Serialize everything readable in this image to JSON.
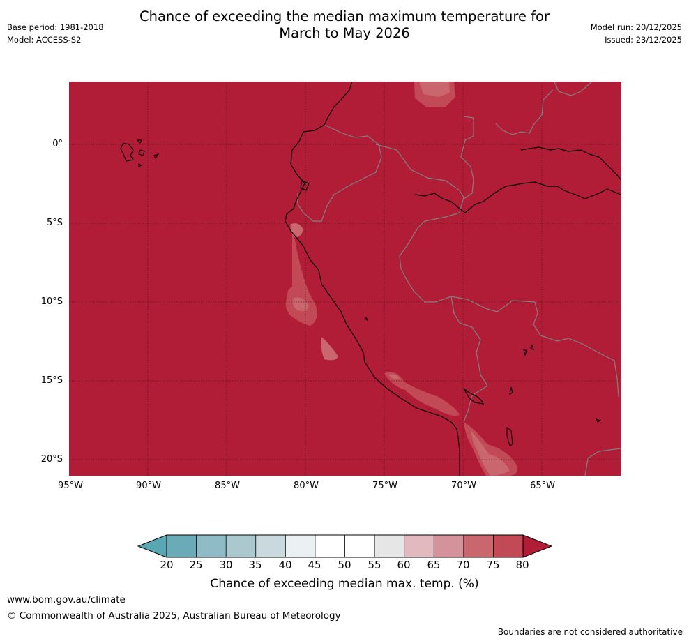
{
  "title": {
    "line1": "Chance of exceeding the median maximum temperature for",
    "line2": "March to May 2026"
  },
  "meta": {
    "base_period": "Base period: 1981-2018",
    "model": "Model: ACCESS-S2",
    "model_run": "Model run: 20/12/2025",
    "issued": "Issued: 23/12/2025"
  },
  "map": {
    "latitude_labels": [
      "0°",
      "5°S",
      "10°S",
      "15°S",
      "20°S"
    ],
    "longitude_labels": [
      "95°W",
      "90°W",
      "85°W",
      "80°W",
      "75°W",
      "70°W",
      "65°W"
    ],
    "dominant_category": ">80%",
    "colors": {
      "above_80": "#b11c37",
      "75_80": "#c24956",
      "70_75": "#c9666e",
      "land_border": "#808080",
      "coastline": "#000000"
    }
  },
  "colorbar": {
    "ticks": [
      "20",
      "25",
      "30",
      "35",
      "40",
      "45",
      "50",
      "55",
      "60",
      "65",
      "70",
      "75",
      "80"
    ],
    "colors": [
      "#6babb7",
      "#8ebbc5",
      "#aac8ce",
      "#c9d9dd",
      "#ebf0f2",
      "#ffffff",
      "#ffffff",
      "#e6e6e6",
      "#e1b9bf",
      "#d4929a",
      "#c9666e",
      "#c24956"
    ],
    "under_color": "#58a7b2",
    "over_color": "#b11c37",
    "label": "Chance of exceeding median max. temp. (%)"
  },
  "footer": {
    "url": "www.bom.gov.au/climate",
    "copyright": "© Commonwealth of Australia 2025, Australian Bureau of Meteorology",
    "disclaimer": "Boundaries are not considered authoritative"
  }
}
